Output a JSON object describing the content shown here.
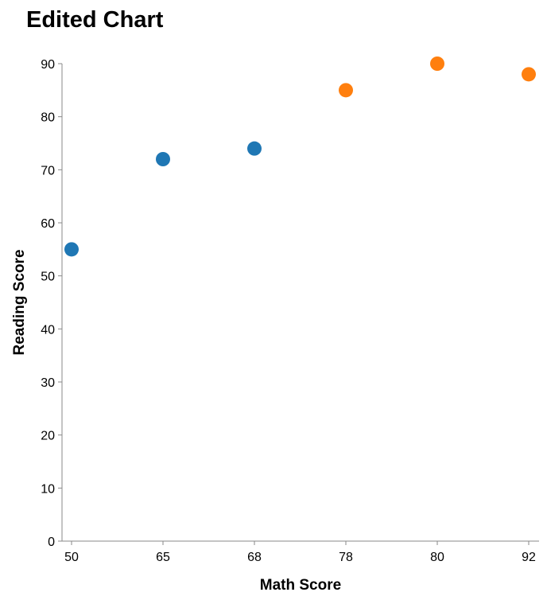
{
  "chart_data": {
    "type": "scatter",
    "title": "Edited Chart",
    "xlabel": "Math Score",
    "ylabel": "Reading Score",
    "x_scale": "ordinal",
    "x_categories": [
      "50",
      "65",
      "68",
      "78",
      "80",
      "92"
    ],
    "ylim": [
      0,
      90
    ],
    "y_ticks": [
      0,
      10,
      20,
      30,
      40,
      50,
      60,
      70,
      80,
      90
    ],
    "grid": false,
    "legend": "none",
    "points": [
      {
        "x": "50",
        "y": 55,
        "color": "#1f77b4"
      },
      {
        "x": "65",
        "y": 72,
        "color": "#1f77b4"
      },
      {
        "x": "68",
        "y": 74,
        "color": "#1f77b4"
      },
      {
        "x": "78",
        "y": 85,
        "color": "#ff7f0e"
      },
      {
        "x": "80",
        "y": 90,
        "color": "#ff7f0e"
      },
      {
        "x": "92",
        "y": 88,
        "color": "#ff7f0e"
      }
    ]
  }
}
